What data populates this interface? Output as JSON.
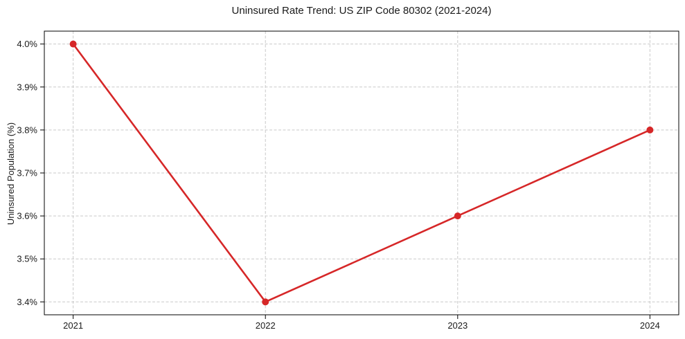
{
  "chart_data": {
    "type": "line",
    "title": "Uninsured Rate Trend: US ZIP Code 80302 (2021-2024)",
    "xlabel": "",
    "ylabel": "Uninsured Population (%)",
    "x": [
      2021,
      2022,
      2023,
      2024
    ],
    "x_tick_labels": [
      "2021",
      "2022",
      "2023",
      "2024"
    ],
    "series": [
      {
        "name": "uninsured-rate",
        "values": [
          4.0,
          3.4,
          3.6,
          3.8
        ]
      }
    ],
    "y_ticks": [
      3.4,
      3.5,
      3.6,
      3.7,
      3.8,
      3.9,
      4.0
    ],
    "y_tick_labels": [
      "3.4%",
      "3.5%",
      "3.6%",
      "3.7%",
      "3.8%",
      "3.9%",
      "4.0%"
    ],
    "xlim": [
      2020.85,
      2024.15
    ],
    "ylim": [
      3.37,
      4.03
    ],
    "grid": true,
    "grid_style": "dashed",
    "legend_position": "none",
    "colors": {
      "line": "#d62728",
      "marker": "#d62728",
      "grid": "#c9c9c9",
      "frame": "#000000",
      "tick": "#000000",
      "text": "#1a1a1a",
      "background": "#ffffff"
    }
  }
}
